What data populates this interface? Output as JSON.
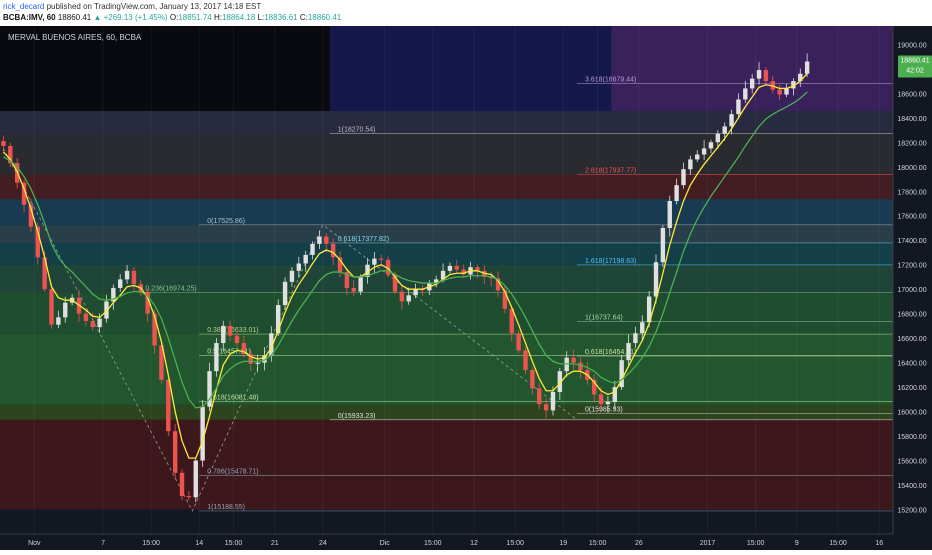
{
  "header": {
    "author": "rick_decard",
    "published": "published on TradingView.com, January 13, 2017 14:18 EST",
    "symbol": "BCBA:IMV, 60",
    "last": "18860.41",
    "change": "+269.13 (+1.45%)",
    "ohlc": [
      {
        "k": "O:",
        "v": "18851.74"
      },
      {
        "k": "H:",
        "v": "18864.18"
      },
      {
        "k": "L:",
        "v": "18836.61"
      },
      {
        "k": "C:",
        "v": "18860.41"
      }
    ]
  },
  "chart_data": {
    "type": "candlestick",
    "title": "MERVAL BUENOS AIRES, 60, BCBA",
    "ylim": [
      15000,
      19150
    ],
    "xlim": [
      0,
      130
    ],
    "y_ticks": [
      "15200.00",
      "15400.00",
      "15600.00",
      "15800.00",
      "16000.00",
      "16200.00",
      "16400.00",
      "16600.00",
      "16800.00",
      "17000.00",
      "17200.00",
      "17400.00",
      "17600.00",
      "17800.00",
      "18000.00",
      "18200.00",
      "18400.00",
      "18600.00",
      "19000.00"
    ],
    "price_marker": {
      "value": "18860.41",
      "sub": "42:02",
      "color": "#4caf50"
    },
    "x_ticks": [
      {
        "pos": 5,
        "label": "Nov"
      },
      {
        "pos": 15,
        "label": "7"
      },
      {
        "pos": 22,
        "label": "15:00"
      },
      {
        "pos": 29,
        "label": "14"
      },
      {
        "pos": 34,
        "label": "15:00"
      },
      {
        "pos": 40,
        "label": "21"
      },
      {
        "pos": 47,
        "label": "24"
      },
      {
        "pos": 56,
        "label": "Dic"
      },
      {
        "pos": 63,
        "label": "15:00"
      },
      {
        "pos": 69,
        "label": "12"
      },
      {
        "pos": 75,
        "label": "15:00"
      },
      {
        "pos": 82,
        "label": "19"
      },
      {
        "pos": 87,
        "label": "15:00"
      },
      {
        "pos": 93,
        "label": "26"
      },
      {
        "pos": 103,
        "label": "2017"
      },
      {
        "pos": 110,
        "label": "15:00"
      },
      {
        "pos": 116,
        "label": "9"
      },
      {
        "pos": 122,
        "label": "15:00"
      },
      {
        "pos": 128,
        "label": "16"
      }
    ],
    "zones": [
      {
        "x0": 0,
        "x1": 48,
        "y0": 18455,
        "y1": 19150,
        "color": "#000000"
      },
      {
        "x0": 48,
        "x1": 89,
        "y0": 18455,
        "y1": 19150,
        "color": "#1a1a6e"
      },
      {
        "x0": 89,
        "x1": 130,
        "y0": 18455,
        "y1": 19150,
        "color": "#5a2a8c"
      },
      {
        "x0": 0,
        "x1": 130,
        "y0": 18270,
        "y1": 18455,
        "color": "#3a3a5a"
      },
      {
        "x0": 0,
        "x1": 130,
        "y0": 17935,
        "y1": 18270,
        "color": "#3d3d3d"
      },
      {
        "x0": 0,
        "x1": 130,
        "y0": 17735,
        "y1": 17935,
        "color": "#6a2424"
      },
      {
        "x0": 0,
        "x1": 130,
        "y0": 17525,
        "y1": 17735,
        "color": "#1e5a78"
      },
      {
        "x0": 0,
        "x1": 130,
        "y0": 17377,
        "y1": 17525,
        "color": "#3b5f6a"
      },
      {
        "x0": 0,
        "x1": 130,
        "y0": 17200,
        "y1": 17377,
        "color": "#14616a"
      },
      {
        "x0": 0,
        "x1": 130,
        "y0": 16974,
        "y1": 17200,
        "color": "#2a6a4a"
      },
      {
        "x0": 0,
        "x1": 130,
        "y0": 16634,
        "y1": 16974,
        "color": "#2a7a3a"
      },
      {
        "x0": 0,
        "x1": 130,
        "y0": 16057,
        "y1": 16634,
        "color": "#2d8a3a"
      },
      {
        "x0": 0,
        "x1": 130,
        "y0": 15933,
        "y1": 16057,
        "color": "#446b1d"
      },
      {
        "x0": 0,
        "x1": 130,
        "y0": 15200,
        "y1": 15933,
        "color": "#5e1a1a"
      }
    ],
    "fib_levels": [
      {
        "label": "3.618(18679.44)",
        "value": 18679.44,
        "x": 84,
        "color": "#b39ddb"
      },
      {
        "label": "1(18270.54)",
        "value": 18270.54,
        "x": 48,
        "color": "#bdbdbd"
      },
      {
        "label": "2.618(17937.77)",
        "value": 17937.77,
        "x": 84,
        "color": "#ef5350"
      },
      {
        "label": "0(17525.86)",
        "value": 17525.86,
        "x": 29,
        "color": "#b0bec5"
      },
      {
        "label": "0.618(17377.82)",
        "value": 17377.82,
        "x": 48,
        "color": "#80deea"
      },
      {
        "label": "1.618(17198.63)",
        "value": 17198.63,
        "x": 84,
        "color": "#4fc3f7"
      },
      {
        "label": "0.236(16974.25)",
        "value": 16974.25,
        "x": 20,
        "color": "#81c784"
      },
      {
        "label": "1(16737.64)",
        "value": 16737.64,
        "x": 84,
        "color": "#a5d6a7"
      },
      {
        "label": "0.382(16633.01)",
        "value": 16633.01,
        "x": 29,
        "color": "#aed581"
      },
      {
        "label": "0.5(16457.21)",
        "value": 16457.21,
        "x": 29,
        "color": "#c5e1a5"
      },
      {
        "label": "0.618(16454.31)",
        "value": 16454.31,
        "x": 84,
        "color": "#c5e1a5"
      },
      {
        "label": "0.618(16081.48)",
        "value": 16081.48,
        "x": 29,
        "color": "#c5e1a5"
      },
      {
        "label": "0(15933.23)",
        "value": 15933.23,
        "x": 48,
        "color": "#e0e0e0"
      },
      {
        "label": "0.786(15478.71)",
        "value": 15478.71,
        "x": 29,
        "color": "#90a4ae"
      },
      {
        "label": "1(15188.55)",
        "value": 15188.55,
        "x": 29,
        "color": "#90a4ae"
      },
      {
        "label": "0(15985.93)",
        "value": 15985.93,
        "x": 84,
        "color": "#e0e0e0"
      }
    ],
    "close": [
      18170,
      18030,
      17870,
      17690,
      17510,
      17260,
      17000,
      16710,
      16770,
      16890,
      16930,
      16800,
      16740,
      16690,
      16760,
      16900,
      17010,
      17080,
      17150,
      17040,
      16980,
      16800,
      16540,
      16260,
      15840,
      15500,
      15310,
      15300,
      15600,
      16040,
      16330,
      16560,
      16700,
      16620,
      16560,
      16470,
      16390,
      16400,
      16460,
      16640,
      16870,
      17060,
      17150,
      17210,
      17280,
      17370,
      17430,
      17370,
      17260,
      17140,
      17010,
      16980,
      17100,
      17200,
      17250,
      17240,
      17120,
      16980,
      16900,
      16950,
      17000,
      16990,
      17050,
      17080,
      17150,
      17190,
      17160,
      17120,
      17180,
      17150,
      17100,
      17090,
      16990,
      16840,
      16640,
      16500,
      16340,
      16190,
      16060,
      16010,
      16160,
      16330,
      16440,
      16400,
      16340,
      16260,
      16140,
      16060,
      16080,
      16200,
      16420,
      16560,
      16640,
      16730,
      16940,
      17220,
      17500,
      17720,
      17850,
      17980,
      18060,
      18100,
      18150,
      18200,
      18270,
      18330,
      18430,
      18550,
      18640,
      18720,
      18790,
      18700,
      18630,
      18590,
      18640,
      18700,
      18760,
      18860
    ],
    "ema_fast": [
      18120,
      18060,
      17960,
      17820,
      17660,
      17470,
      17260,
      17020,
      16930,
      16910,
      16910,
      16870,
      16830,
      16780,
      16770,
      16820,
      16890,
      16950,
      17020,
      17030,
      17010,
      16930,
      16780,
      16570,
      16300,
      16000,
      15760,
      15620,
      15620,
      15760,
      15960,
      16180,
      16380,
      16470,
      16500,
      16490,
      16450,
      16430,
      16440,
      16520,
      16660,
      16810,
      16940,
      17040,
      17120,
      17210,
      17290,
      17320,
      17300,
      17240,
      17160,
      17100,
      17100,
      17140,
      17180,
      17200,
      17170,
      17100,
      17030,
      17000,
      17000,
      17000,
      17020,
      17040,
      17080,
      17120,
      17130,
      17130,
      17150,
      17150,
      17130,
      17120,
      17070,
      16980,
      16850,
      16710,
      16560,
      16410,
      16270,
      16170,
      16170,
      16230,
      16300,
      16330,
      16330,
      16300,
      16240,
      16170,
      16140,
      16160,
      16260,
      16370,
      16480,
      16580,
      16720,
      16910,
      17130,
      17360,
      17550,
      17720,
      17850,
      17940,
      18020,
      18090,
      18160,
      18230,
      18310,
      18400,
      18490,
      18570,
      18650,
      18670,
      18660,
      18640,
      18640,
      18660,
      18700,
      18760
    ],
    "ema_slow": [
      18080,
      18050,
      18000,
      17920,
      17820,
      17690,
      17540,
      17370,
      17260,
      17190,
      17140,
      17080,
      17020,
      16960,
      16920,
      16910,
      16920,
      16940,
      16970,
      16980,
      16980,
      16940,
      16870,
      16760,
      16600,
      16420,
      16240,
      16100,
      16030,
      16040,
      16100,
      16190,
      16290,
      16350,
      16390,
      16410,
      16410,
      16410,
      16420,
      16460,
      16540,
      16640,
      16740,
      16830,
      16910,
      16990,
      17070,
      17120,
      17140,
      17140,
      17120,
      17100,
      17100,
      17110,
      17130,
      17150,
      17150,
      17120,
      17090,
      17070,
      17060,
      17050,
      17050,
      17050,
      17070,
      17090,
      17100,
      17100,
      17110,
      17110,
      17110,
      17100,
      17080,
      17030,
      16960,
      16870,
      16770,
      16660,
      16550,
      16460,
      16410,
      16390,
      16390,
      16390,
      16380,
      16360,
      16330,
      16280,
      16250,
      16230,
      16260,
      16310,
      16370,
      16440,
      16530,
      16650,
      16800,
      16970,
      17140,
      17310,
      17450,
      17570,
      17670,
      17760,
      17840,
      17920,
      18000,
      18080,
      18170,
      18250,
      18330,
      18390,
      18430,
      18460,
      18490,
      18520,
      18560,
      18610
    ]
  }
}
